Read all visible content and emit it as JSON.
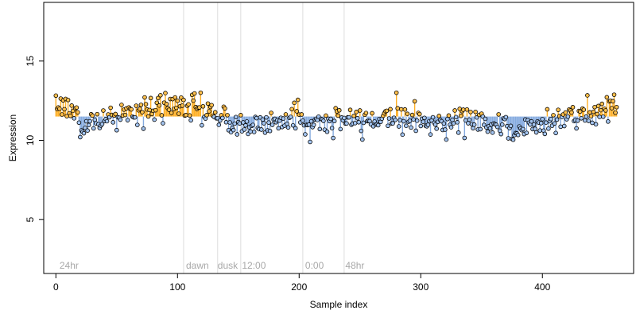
{
  "chart_data": {
    "type": "scatter",
    "title": "",
    "xlabel": "Sample index",
    "ylabel": "Expression",
    "xlim": [
      -10,
      475
    ],
    "ylim": [
      1.6,
      18.7
    ],
    "x_ticks": [
      0,
      100,
      200,
      300,
      400
    ],
    "y_ticks": [
      5,
      10,
      15
    ],
    "reference_line": 11.5,
    "segment_boundaries": [
      105,
      133,
      152,
      203,
      237
    ],
    "segment_labels": [
      {
        "label": "24hr",
        "x": 3
      },
      {
        "label": "dawn",
        "x": 107
      },
      {
        "label": "dusk",
        "x": 133
      },
      {
        "label": "12:00",
        "x": 153
      },
      {
        "label": "0:00",
        "x": 205
      },
      {
        "label": "48hr",
        "x": 238
      }
    ],
    "n_points": 462,
    "anchor_points": {
      "x": [
        0,
        5,
        10,
        15,
        20,
        24,
        30,
        40,
        50,
        60,
        70,
        80,
        90,
        100,
        104,
        110,
        115,
        120,
        125,
        130,
        134,
        140,
        145,
        150,
        153,
        158,
        165,
        175,
        185,
        195,
        200,
        205,
        210,
        220,
        230,
        240,
        250,
        260,
        270,
        280,
        290,
        300,
        310,
        320,
        330,
        340,
        350,
        360,
        370,
        380,
        390,
        400,
        410,
        420,
        430,
        440,
        450,
        455,
        461
      ],
      "y": [
        12.4,
        12.5,
        12.0,
        11.7,
        11.0,
        10.6,
        11.3,
        11.2,
        11.6,
        11.7,
        11.8,
        11.9,
        12.1,
        12.3,
        12.4,
        11.9,
        12.2,
        12.0,
        11.9,
        11.8,
        11.0,
        11.3,
        11.0,
        10.8,
        11.2,
        10.8,
        10.9,
        11.1,
        11.3,
        11.5,
        11.7,
        11.0,
        10.8,
        11.2,
        11.1,
        11.4,
        11.1,
        11.3,
        11.5,
        11.7,
        11.4,
        11.2,
        11.0,
        11.2,
        11.3,
        11.5,
        11.0,
        11.2,
        10.7,
        10.4,
        11.1,
        11.0,
        11.4,
        11.6,
        11.2,
        11.8,
        12.0,
        12.2,
        12.4
      ]
    },
    "noise_sd": 0.45,
    "colors": {
      "above_fill": "#ffc04d",
      "below_fill": "#a3c4f0",
      "above_line": "#ffa200",
      "below_line": "#6f9bd9",
      "gridline": "#dddddd",
      "segment_label": "#a8a8a8"
    }
  }
}
